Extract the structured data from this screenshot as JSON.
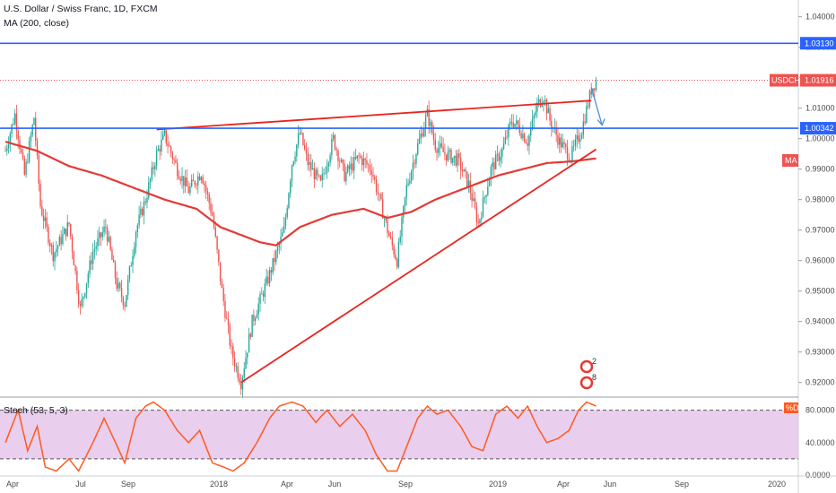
{
  "header": {
    "title": "U.S. Dollar / Swiss Franc, 1D, FXCM",
    "ma_label": "MA (200, close)",
    "stoch_label": "Stoch (53, 5, 3)"
  },
  "price_tag": {
    "symbol": "USDCHF",
    "value": "1.01916"
  },
  "level_tags": {
    "upper": "1.03130",
    "lower": "1.00342"
  },
  "ma_tag": "MA",
  "stoch_tag": "%D",
  "event_badges": [
    "2",
    "8"
  ],
  "colors": {
    "candle_up": "#26a69a",
    "candle_down": "#ef5350",
    "ma_line": "#e53935",
    "trendline": "#e8241f",
    "level_line": "#2962ff",
    "stoch_line": "#ff5a1f",
    "stoch_band": "#e1bee7",
    "arrow": "#4a90d9"
  },
  "chart_data": {
    "type": "candlestick",
    "symbol": "USDCHF",
    "timeframe": "1D",
    "price_axis": {
      "ylim": [
        0.9155,
        1.0455
      ],
      "ticks": [
        "1.04000",
        "1.03000",
        "1.02000",
        "1.01000",
        "1.00000",
        "0.99000",
        "0.98000",
        "0.97000",
        "0.96000",
        "0.95000",
        "0.94000",
        "0.93000",
        "0.92000"
      ]
    },
    "time_axis": {
      "labels": [
        "Apr",
        "Jul",
        "Sep",
        "2018",
        "Apr",
        "Jun",
        "Sep",
        "2019",
        "Apr",
        "Jun",
        "Sep",
        "2020"
      ]
    },
    "horizontal_levels": [
      1.0313,
      1.00342
    ],
    "last_price": 1.01916,
    "price_path": [
      [
        0,
        0.996
      ],
      [
        6,
        1.008
      ],
      [
        12,
        0.988
      ],
      [
        18,
        1.007
      ],
      [
        22,
        0.978
      ],
      [
        30,
        0.962
      ],
      [
        40,
        0.972
      ],
      [
        47,
        0.944
      ],
      [
        55,
        0.963
      ],
      [
        63,
        0.971
      ],
      [
        70,
        0.952
      ],
      [
        75,
        0.946
      ],
      [
        82,
        0.97
      ],
      [
        88,
        0.98
      ],
      [
        95,
        0.995
      ],
      [
        100,
        1.001
      ],
      [
        108,
        0.99
      ],
      [
        115,
        0.983
      ],
      [
        123,
        0.989
      ],
      [
        130,
        0.975
      ],
      [
        136,
        0.95
      ],
      [
        142,
        0.93
      ],
      [
        148,
        0.92
      ],
      [
        155,
        0.94
      ],
      [
        165,
        0.954
      ],
      [
        175,
        0.97
      ],
      [
        180,
        0.992
      ],
      [
        185,
        1.002
      ],
      [
        190,
        0.992
      ],
      [
        198,
        0.985
      ],
      [
        206,
        1.0
      ],
      [
        213,
        0.988
      ],
      [
        222,
        0.994
      ],
      [
        230,
        0.99
      ],
      [
        236,
        0.978
      ],
      [
        241,
        0.968
      ],
      [
        246,
        0.96
      ],
      [
        252,
        0.984
      ],
      [
        258,
        0.996
      ],
      [
        265,
        1.008
      ],
      [
        270,
        0.998
      ],
      [
        276,
        0.995
      ],
      [
        284,
        0.993
      ],
      [
        291,
        0.985
      ],
      [
        297,
        0.972
      ],
      [
        305,
        0.99
      ],
      [
        312,
        0.996
      ],
      [
        318,
        1.006
      ],
      [
        322,
        1.004
      ],
      [
        328,
        0.999
      ],
      [
        334,
        1.011
      ],
      [
        338,
        1.014
      ],
      [
        342,
        1.006
      ],
      [
        348,
        0.999
      ],
      [
        355,
        0.994
      ],
      [
        362,
        1.003
      ],
      [
        368,
        1.016
      ],
      [
        371,
        1.0191
      ]
    ],
    "ma_200": [
      [
        0,
        0.999
      ],
      [
        20,
        0.996
      ],
      [
        40,
        0.991
      ],
      [
        60,
        0.988
      ],
      [
        80,
        0.984
      ],
      [
        100,
        0.98
      ],
      [
        120,
        0.977
      ],
      [
        135,
        0.971
      ],
      [
        150,
        0.968
      ],
      [
        160,
        0.966
      ],
      [
        170,
        0.965
      ],
      [
        185,
        0.971
      ],
      [
        205,
        0.975
      ],
      [
        225,
        0.977
      ],
      [
        240,
        0.974
      ],
      [
        255,
        0.976
      ],
      [
        270,
        0.98
      ],
      [
        290,
        0.984
      ],
      [
        310,
        0.988
      ],
      [
        325,
        0.99
      ],
      [
        340,
        0.992
      ],
      [
        355,
        0.9925
      ],
      [
        371,
        0.9935
      ]
    ],
    "trendlines": [
      {
        "name": "resistance",
        "points": [
          [
            95,
            1.003
          ],
          [
            368,
            1.0125
          ]
        ]
      },
      {
        "name": "support",
        "points": [
          [
            148,
            0.92
          ],
          [
            371,
            0.9965
          ]
        ]
      }
    ],
    "stochastic": {
      "params": [
        53,
        5,
        3
      ],
      "ylim": [
        0,
        95
      ],
      "ticks": [
        "80.0000",
        "40.0000",
        "0.0000"
      ],
      "bands": [
        80,
        20
      ],
      "values": [
        [
          0,
          40
        ],
        [
          8,
          80
        ],
        [
          14,
          30
        ],
        [
          20,
          60
        ],
        [
          25,
          10
        ],
        [
          32,
          5
        ],
        [
          40,
          20
        ],
        [
          46,
          5
        ],
        [
          55,
          40
        ],
        [
          62,
          70
        ],
        [
          68,
          45
        ],
        [
          75,
          15
        ],
        [
          82,
          70
        ],
        [
          88,
          85
        ],
        [
          93,
          90
        ],
        [
          100,
          80
        ],
        [
          108,
          55
        ],
        [
          115,
          40
        ],
        [
          122,
          55
        ],
        [
          130,
          15
        ],
        [
          137,
          10
        ],
        [
          143,
          5
        ],
        [
          150,
          15
        ],
        [
          158,
          40
        ],
        [
          166,
          70
        ],
        [
          172,
          85
        ],
        [
          180,
          90
        ],
        [
          187,
          85
        ],
        [
          195,
          65
        ],
        [
          202,
          80
        ],
        [
          210,
          60
        ],
        [
          218,
          75
        ],
        [
          226,
          55
        ],
        [
          233,
          25
        ],
        [
          240,
          5
        ],
        [
          246,
          5
        ],
        [
          253,
          40
        ],
        [
          259,
          70
        ],
        [
          265,
          85
        ],
        [
          271,
          75
        ],
        [
          278,
          80
        ],
        [
          286,
          60
        ],
        [
          293,
          35
        ],
        [
          300,
          30
        ],
        [
          308,
          75
        ],
        [
          315,
          85
        ],
        [
          322,
          70
        ],
        [
          328,
          85
        ],
        [
          334,
          60
        ],
        [
          340,
          40
        ],
        [
          347,
          45
        ],
        [
          354,
          55
        ],
        [
          360,
          80
        ],
        [
          365,
          90
        ],
        [
          371,
          85
        ]
      ]
    }
  }
}
